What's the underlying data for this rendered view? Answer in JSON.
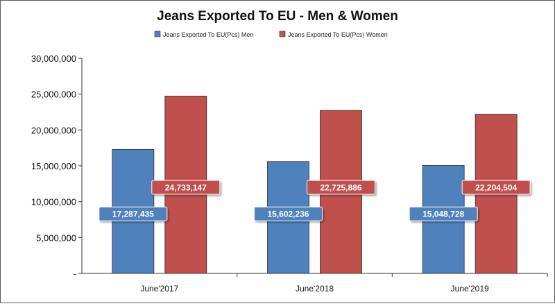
{
  "chart_data": {
    "type": "bar",
    "title": "Jeans Exported To EU - Men & Women",
    "categories": [
      "June'2017",
      "June'2018",
      "June'2019"
    ],
    "series": [
      {
        "name": "Jeans Exported To EU(Pcs)  Men",
        "color": "#4f81bd",
        "values": [
          17287435,
          15602236,
          15048728
        ]
      },
      {
        "name": "Jeans Exported To EU(Pcs)  Women",
        "color": "#c0504d",
        "values": [
          24733147,
          22725886,
          22204504
        ]
      }
    ],
    "data_labels": [
      [
        "17,287,435",
        "15,602,236",
        "15,048,728"
      ],
      [
        "24,733,147",
        "22,725,886",
        "22,204,504"
      ]
    ],
    "ylim": [
      0,
      30000000
    ],
    "yticks": [
      0,
      5000000,
      10000000,
      15000000,
      20000000,
      25000000,
      30000000
    ],
    "ytick_labels": [
      "-",
      "5,000,000",
      "10,000,000",
      "15,000,000",
      "20,000,000",
      "25,000,000",
      "30,000,000"
    ],
    "grid": false,
    "legend_position": "top"
  }
}
